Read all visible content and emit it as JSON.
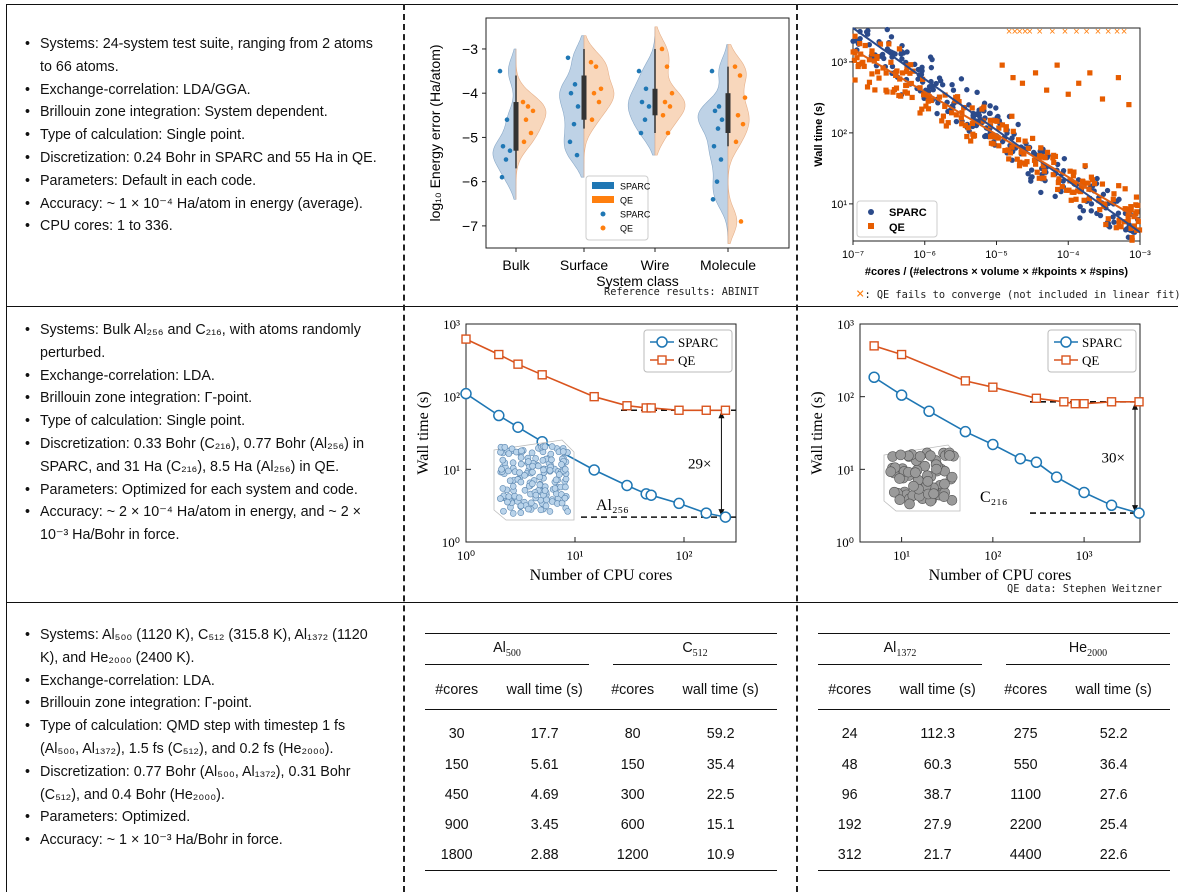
{
  "rows": [
    {
      "bullets": [
        "Systems: 24-system test suite, ranging from 2 atoms to 66 atoms.",
        "Exchange-correlation: LDA/GGA.",
        "Brillouin zone integration: System dependent.",
        "Type of calculation: Single point.",
        "Discretization: 0.24 Bohr in SPARC and 55 Ha in QE.",
        "Parameters: Default in each code.",
        "Accuracy: ~ 1 × 10⁻⁴ Ha/atom in energy (average).",
        "CPU cores: 1 to 336."
      ]
    },
    {
      "bullets": [
        "Systems: Bulk Al₂₅₆ and C₂₁₆, with atoms randomly perturbed.",
        "Exchange-correlation: LDA.",
        "Brillouin zone integration: Γ-point.",
        "Type of calculation: Single point.",
        "Discretization: 0.33 Bohr (C₂₁₆), 0.77 Bohr (Al₂₅₆) in SPARC, and 31 Ha (C₂₁₆), 8.5 Ha (Al₂₅₆) in QE.",
        "Parameters: Optimized for each system and code.",
        "Accuracy: ~ 2 × 10⁻⁴ Ha/atom in energy, and ~ 2 × 10⁻³ Ha/Bohr in force."
      ]
    },
    {
      "bullets": [
        "Systems: Al₅₀₀ (1120 K), C₅₁₂ (315.8 K), Al₁₃₇₂ (1120 K), and He₂₀₀₀ (2400 K).",
        "Exchange-correlation: LDA.",
        "Brillouin zone integration: Γ-point.",
        "Type of calculation: QMD step with timestep 1 fs (Al₅₀₀, Al₁₃₇₂), 1.5 fs (C₅₁₂), and 0.2 fs (He₂₀₀₀).",
        "Discretization: 0.77 Bohr (Al₅₀₀, Al₁₃₇₂), 0.31 Bohr (C₅₁₂), and 0.4 Bohr (He₂₀₀₀).",
        "Parameters: Optimized.",
        "Accuracy: ~ 1 × 10⁻³ Ha/Bohr in force."
      ]
    }
  ],
  "notes": {
    "abinit": "Reference results: ABINIT",
    "qe_fail": ": QE fails to converge (not included in linear fit)",
    "qe_fail_marker": "×",
    "qe_data": "QE data: Stephen Weitzner"
  },
  "colors": {
    "sparc": "#1f77b4",
    "qe": "#ff7f0e",
    "sparc_dark": "#2b4a8a",
    "qe_dark": "#e65c00"
  },
  "chart_data": [
    {
      "type": "violin",
      "xlabel": "System class",
      "ylabel": "log₁₀ Energy error (Ha/atom)",
      "categories": [
        "Bulk",
        "Surface",
        "Wire",
        "Molecule"
      ],
      "ylim": [
        -7.5,
        -2.3
      ],
      "yticks": [
        "-3",
        "-4",
        "-5",
        "-6",
        "-7"
      ],
      "legend": [
        "SPARC",
        "QE",
        "SPARC",
        "QE"
      ],
      "legend_position": "lower-right",
      "series": [
        {
          "name": "SPARC",
          "points": [
            [
              -3.5,
              -4.6,
              -5.2,
              -5.3,
              -5.5,
              -5.9
            ],
            [
              -3.2,
              -3.8,
              -4.0,
              -4.3,
              -4.7,
              -5.1,
              -5.4
            ],
            [
              -3.5,
              -3.9,
              -4.2,
              -4.3,
              -4.6,
              -4.9
            ],
            [
              -3.5,
              -4.3,
              -4.4,
              -4.6,
              -4.8,
              -5.2,
              -5.5,
              -6.0,
              -6.4
            ]
          ]
        },
        {
          "name": "QE",
          "points": [
            [
              -4.2,
              -4.3,
              -4.4,
              -4.6,
              -4.9,
              -5.1
            ],
            [
              -3.3,
              -3.4,
              -3.9,
              -4.0,
              -4.2,
              -4.6
            ],
            [
              -3.0,
              -3.4,
              -4.0,
              -4.2,
              -4.3,
              -4.5,
              -4.9
            ],
            [
              -3.4,
              -3.6,
              -4.1,
              -4.5,
              -4.7,
              -5.1,
              -6.9
            ]
          ]
        }
      ],
      "box": [
        [
          -5.3,
          -4.2,
          -3.6,
          -5.0
        ],
        [
          -4.6,
          -3.6,
          -3.0,
          -4.1
        ],
        [
          -4.5,
          -3.9,
          -3.0,
          -4.2
        ],
        [
          -4.9,
          -4.0,
          -3.4,
          -4.5
        ]
      ]
    },
    {
      "type": "scatter",
      "xscale": "log",
      "yscale": "log",
      "xlabel": "#cores / (#electrons × volume × #kpoints × #spins)",
      "ylabel": "Wall time (s)",
      "xlim": [
        1e-07,
        0.001
      ],
      "ylim": [
        3,
        3000
      ],
      "xticks": [
        "10⁻⁷",
        "10⁻⁶",
        "10⁻⁵",
        "10⁻⁴",
        "10⁻³"
      ],
      "yticks": [
        "10¹",
        "10²",
        "10³"
      ],
      "legend_position": "lower-left",
      "series": [
        {
          "name": "SPARC",
          "fit": [
            [
              1e-07,
              3000
            ],
            [
              0.001,
              4
            ]
          ],
          "n_points": 240
        },
        {
          "name": "QE",
          "fit": [
            [
              1e-07,
              1500
            ],
            [
              0.001,
              6
            ]
          ],
          "n_points": 220
        }
      ],
      "qe_failures_x": [
        1.5e-05,
        1.8e-05,
        2.1e-05,
        2.5e-05,
        2.9e-05,
        4e-05,
        6e-05,
        9e-05,
        0.00013,
        0.00018,
        0.00026,
        0.00036,
        0.00048,
        0.0006
      ],
      "qe_outliers": [
        [
          1.2e-05,
          900
        ],
        [
          1.7e-05,
          600
        ],
        [
          2.3e-05,
          500
        ],
        [
          3.5e-05,
          700
        ],
        [
          5e-05,
          400
        ],
        [
          7e-05,
          900
        ],
        [
          0.0001,
          350
        ],
        [
          0.00014,
          500
        ],
        [
          0.0002,
          700
        ],
        [
          0.0003,
          300
        ],
        [
          0.0005,
          600
        ],
        [
          0.0007,
          250
        ]
      ]
    },
    {
      "type": "line",
      "xscale": "log",
      "yscale": "log",
      "xlabel": "Number of CPU cores",
      "ylabel": "Wall time (s)",
      "xlim": [
        1,
        300
      ],
      "ylim": [
        1,
        1000
      ],
      "xticks": [
        "10⁰",
        "10¹",
        "10²"
      ],
      "yticks": [
        "10⁰",
        "10¹",
        "10²",
        "10³"
      ],
      "legend_position": "top-right",
      "annotation": "29×",
      "system_label": "Al₂₅₆",
      "series": [
        {
          "name": "SPARC",
          "x": [
            1,
            2,
            3,
            5,
            15,
            30,
            45,
            50,
            90,
            160,
            240
          ],
          "y": [
            110,
            55,
            38,
            24,
            9.8,
            6.0,
            4.6,
            4.4,
            3.4,
            2.5,
            2.2
          ]
        },
        {
          "name": "QE",
          "x": [
            1,
            2,
            3,
            5,
            15,
            30,
            45,
            50,
            90,
            160,
            240
          ],
          "y": [
            620,
            380,
            280,
            200,
            100,
            75,
            70,
            70,
            65,
            65,
            65
          ]
        }
      ]
    },
    {
      "type": "line",
      "xscale": "log",
      "yscale": "log",
      "xlabel": "Number of CPU cores",
      "ylabel": "Wall time (s)",
      "xlim": [
        3.5,
        4100
      ],
      "ylim": [
        1,
        1000
      ],
      "xticks": [
        "10¹",
        "10²",
        "10³"
      ],
      "yticks": [
        "10⁰",
        "10¹",
        "10²",
        "10³"
      ],
      "legend_position": "top-right",
      "annotation": "30×",
      "system_label": "C₂₁₆",
      "series": [
        {
          "name": "SPARC",
          "x": [
            5,
            10,
            20,
            50,
            100,
            200,
            300,
            500,
            1000,
            2000,
            4000
          ],
          "y": [
            185,
            105,
            63,
            33,
            22,
            14,
            12.5,
            7.8,
            4.8,
            3.2,
            2.5
          ]
        },
        {
          "name": "QE",
          "x": [
            5,
            10,
            50,
            100,
            300,
            600,
            800,
            1000,
            2000,
            4000
          ],
          "y": [
            500,
            380,
            165,
            135,
            95,
            85,
            80,
            80,
            85,
            85
          ]
        }
      ]
    },
    {
      "type": "table",
      "groups": [
        {
          "name": "Al",
          "sub": "500",
          "cores": [
            "30",
            "150",
            "450",
            "900",
            "1800"
          ],
          "times": [
            "17.7",
            "5.61",
            "4.69",
            "3.45",
            "2.88"
          ]
        },
        {
          "name": "C",
          "sub": "512",
          "cores": [
            "80",
            "150",
            "300",
            "600",
            "1200"
          ],
          "times": [
            "59.2",
            "35.4",
            "22.5",
            "15.1",
            "10.9"
          ]
        }
      ],
      "headers": [
        "#cores",
        "wall time (s)",
        "#cores",
        "wall time (s)"
      ]
    },
    {
      "type": "table",
      "groups": [
        {
          "name": "Al",
          "sub": "1372",
          "cores": [
            "24",
            "48",
            "96",
            "192",
            "312"
          ],
          "times": [
            "112.3",
            "60.3",
            "38.7",
            "27.9",
            "21.7"
          ]
        },
        {
          "name": "He",
          "sub": "2000",
          "cores": [
            "275",
            "550",
            "1100",
            "2200",
            "4400"
          ],
          "times": [
            "52.2",
            "36.4",
            "27.6",
            "25.4",
            "22.6"
          ]
        }
      ],
      "headers": [
        "#cores",
        "wall time (s)",
        "#cores",
        "wall time (s)"
      ]
    }
  ]
}
